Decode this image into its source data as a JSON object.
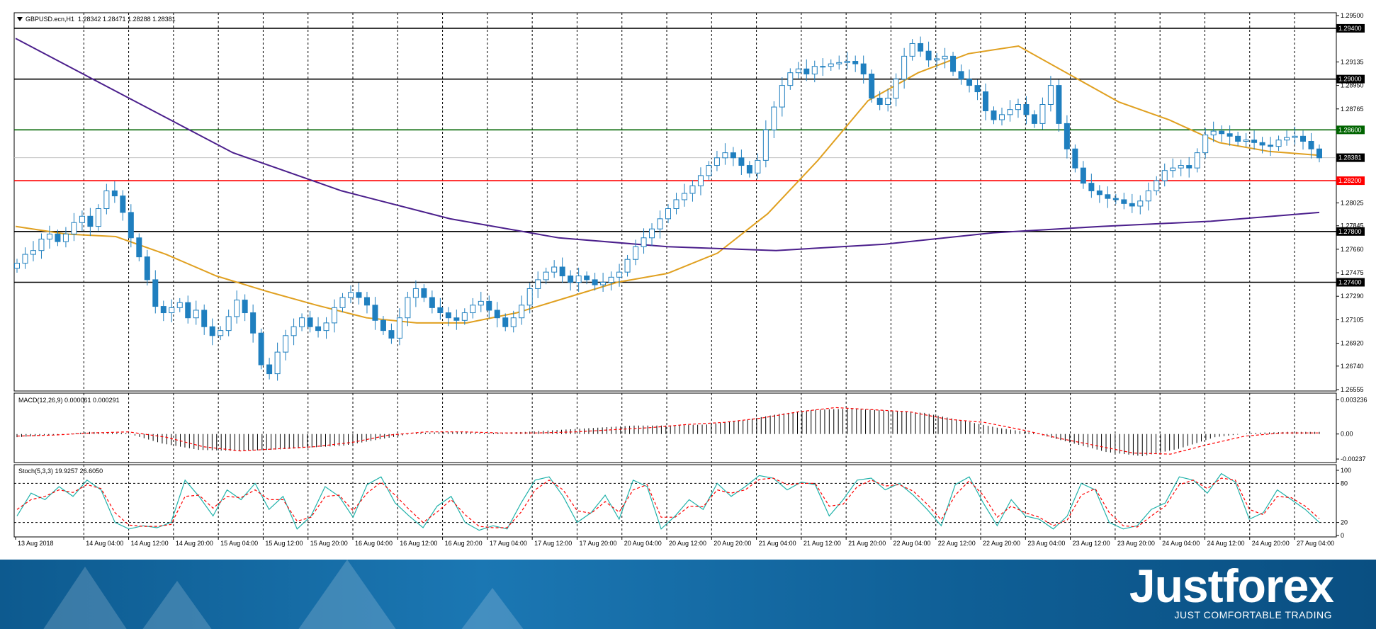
{
  "header": {
    "symbol": "GBPUSD.ecn,H1",
    "ohlc": "1.28342 1.28471 1.28288 1.28381"
  },
  "chart_data": [
    {
      "type": "line",
      "name": "price",
      "ylim": [
        1.26555,
        1.295
      ],
      "y_ticks": [
        "1.29500",
        "1.29135",
        "1.28950",
        "1.28765",
        "1.28025",
        "1.27845",
        "1.27660",
        "1.27475",
        "1.27290",
        "1.27105",
        "1.26920",
        "1.26740",
        "1.26555"
      ],
      "price_levels": [
        {
          "label": "1.29400",
          "value": 1.294,
          "color": "#000000"
        },
        {
          "label": "1.29000",
          "value": 1.29,
          "color": "#000000"
        },
        {
          "label": "1.28600",
          "value": 1.286,
          "color": "#006400"
        },
        {
          "label": "1.28200",
          "value": 1.282,
          "color": "#ff0000"
        },
        {
          "label": "1.27800",
          "value": 1.278,
          "color": "#000000"
        },
        {
          "label": "1.27400",
          "value": 1.274,
          "color": "#000000"
        }
      ],
      "current_price": {
        "label": "1.28381",
        "value": 1.28381
      },
      "x_labels": [
        "13 Aug 2018",
        "14 Aug 04:00",
        "14 Aug 12:00",
        "14 Aug 20:00",
        "15 Aug 04:00",
        "15 Aug 12:00",
        "15 Aug 20:00",
        "16 Aug 04:00",
        "16 Aug 12:00",
        "16 Aug 20:00",
        "17 Aug 04:00",
        "17 Aug 12:00",
        "17 Aug 20:00",
        "20 Aug 04:00",
        "20 Aug 12:00",
        "20 Aug 20:00",
        "21 Aug 04:00",
        "21 Aug 12:00",
        "21 Aug 20:00",
        "22 Aug 04:00",
        "22 Aug 12:00",
        "22 Aug 20:00",
        "23 Aug 04:00",
        "23 Aug 12:00",
        "23 Aug 20:00",
        "24 Aug 04:00",
        "24 Aug 12:00",
        "24 Aug 20:00",
        "27 Aug 04:00"
      ],
      "series": [
        {
          "name": "close",
          "values": [
            1.2755,
            1.2762,
            1.2765,
            1.2774,
            1.2778,
            1.2772,
            1.2778,
            1.2787,
            1.2792,
            1.2784,
            1.2798,
            1.2812,
            1.2808,
            1.2795,
            1.2775,
            1.276,
            1.2742,
            1.2721,
            1.2716,
            1.272,
            1.2724,
            1.2712,
            1.2718,
            1.2705,
            1.2698,
            1.2702,
            1.2713,
            1.2726,
            1.2716,
            1.27,
            1.2675,
            1.2668,
            1.2685,
            1.2698,
            1.2705,
            1.2712,
            1.2705,
            1.2702,
            1.2708,
            1.272,
            1.2728,
            1.2732,
            1.2728,
            1.2722,
            1.271,
            1.2702,
            1.2696,
            1.2712,
            1.2728,
            1.2735,
            1.2728,
            1.272,
            1.2716,
            1.2712,
            1.271,
            1.2716,
            1.2722,
            1.2725,
            1.2718,
            1.2712,
            1.2705,
            1.2712,
            1.2722,
            1.2735,
            1.2742,
            1.2748,
            1.2752,
            1.2745,
            1.274,
            1.2745,
            1.2742,
            1.2738,
            1.274,
            1.2744,
            1.2748,
            1.2758,
            1.2768,
            1.2775,
            1.2782,
            1.279,
            1.2798,
            1.2805,
            1.281,
            1.2816,
            1.2824,
            1.2832,
            1.2838,
            1.2842,
            1.2838,
            1.2832,
            1.2826,
            1.2836,
            1.286,
            1.2878,
            1.2895,
            1.2905,
            1.2908,
            1.2904,
            1.291,
            1.291,
            1.2912,
            1.2913,
            1.2914,
            1.2912,
            1.2904,
            1.2885,
            1.288,
            1.2885,
            1.29,
            1.2918,
            1.2928,
            1.2922,
            1.2915,
            1.2916,
            1.2918,
            1.2906,
            1.29,
            1.2895,
            1.289,
            1.2875,
            1.2868,
            1.2872,
            1.2876,
            1.288,
            1.2872,
            1.2865,
            1.288,
            1.2895,
            1.2865,
            1.2845,
            1.283,
            1.2818,
            1.2812,
            1.2809,
            1.2806,
            1.2805,
            1.2802,
            1.28,
            1.2804,
            1.2812,
            1.282,
            1.2828,
            1.283,
            1.2832,
            1.283,
            1.2842,
            1.2856,
            1.2859,
            1.2857,
            1.2855,
            1.2851,
            1.2852,
            1.285,
            1.2848,
            1.2847,
            1.2852,
            1.2854,
            1.2855,
            1.2851,
            1.2845,
            1.2838
          ]
        },
        {
          "name": "MA (orange)",
          "values": [
            1.2784,
            1.2778,
            1.2776,
            1.2762,
            1.2745,
            1.2733,
            1.2722,
            1.2712,
            1.2708,
            1.2708,
            1.2716,
            1.2728,
            1.274,
            1.2747,
            1.2763,
            1.2794,
            1.2836,
            1.2883,
            1.2905,
            1.292,
            1.2926,
            1.2904,
            1.2882,
            1.2868,
            1.285,
            1.2843,
            1.284
          ]
        },
        {
          "name": "MA (purple)",
          "values": [
            1.2932,
            1.2887,
            1.2842,
            1.2812,
            1.279,
            1.2775,
            1.2768,
            1.2765,
            1.277,
            1.2779,
            1.2784,
            1.2788,
            1.2795
          ]
        }
      ]
    },
    {
      "type": "bar",
      "name": "MACD",
      "label": "MACD(12,26,9) 0.000061 0.000291",
      "y_ticks": [
        "0.003236",
        "0.00",
        "-0.00237"
      ],
      "ylim": [
        -0.0025,
        0.0034
      ],
      "values": [
        -0.0003,
        -0.0001,
        0.0002,
        0.0001,
        -0.0009,
        -0.0015,
        -0.0016,
        -0.0015,
        -0.0013,
        -0.0011,
        -0.0005,
        0.0001,
        0.0002,
        0.0001,
        0.0002,
        0.0004,
        0.0006,
        0.0008,
        0.0008,
        0.0009,
        0.0013,
        0.0019,
        0.0023,
        0.0024,
        0.0022,
        0.002,
        0.0013,
        0.0006,
        0.0001,
        -0.0008,
        -0.0017,
        -0.0021,
        -0.0014,
        -0.0003,
        0.0001,
        0.0002
      ],
      "signal": [
        -0.0002,
        -0.0001,
        0.0001,
        0.0002,
        -0.0003,
        -0.0012,
        -0.0016,
        -0.0014,
        -0.0012,
        -0.0008,
        -0.0001,
        0.0002,
        0.0002,
        0.0001,
        0.0001,
        0.0002,
        0.0004,
        0.0006,
        0.0009,
        0.0011,
        0.0015,
        0.0021,
        0.0025,
        0.0023,
        0.0021,
        0.0014,
        0.0011,
        0.0004,
        -0.0004,
        -0.0011,
        -0.0018,
        -0.0019,
        -0.001,
        -0.0002,
        0.0001,
        0.0001
      ]
    },
    {
      "type": "line",
      "name": "Stochastic",
      "label": "Stoch(5,3,3) 19.9257 26.6050",
      "y_ticks": [
        "100",
        "80",
        "20",
        "0"
      ],
      "ylim": [
        0,
        100
      ],
      "levels": [
        80,
        20
      ],
      "series": [
        {
          "name": "%K",
          "values": [
            30,
            65,
            55,
            75,
            60,
            85,
            70,
            20,
            10,
            15,
            12,
            20,
            85,
            60,
            30,
            70,
            55,
            80,
            40,
            60,
            10,
            30,
            75,
            60,
            28,
            78,
            90,
            50,
            30,
            12,
            45,
            60,
            20,
            8,
            15,
            10,
            50,
            85,
            90,
            60,
            20,
            35,
            62,
            25,
            85,
            75,
            10,
            30,
            55,
            40,
            80,
            60,
            75,
            92,
            88,
            70,
            82,
            78,
            30,
            55,
            85,
            88,
            70,
            80,
            62,
            40,
            15,
            78,
            90,
            50,
            15,
            55,
            30,
            25,
            10,
            30,
            80,
            70,
            20,
            10,
            15,
            40,
            50,
            90,
            85,
            65,
            95,
            82,
            25,
            35,
            70,
            55,
            40,
            20
          ]
        },
        {
          "name": "%D",
          "values": [
            40,
            55,
            60,
            70,
            66,
            78,
            72,
            35,
            16,
            14,
            14,
            17,
            60,
            62,
            42,
            60,
            58,
            70,
            55,
            55,
            22,
            28,
            60,
            62,
            38,
            65,
            82,
            62,
            40,
            20,
            36,
            55,
            32,
            14,
            12,
            12,
            36,
            70,
            85,
            70,
            38,
            34,
            52,
            36,
            70,
            78,
            28,
            28,
            45,
            44,
            70,
            65,
            70,
            86,
            88,
            78,
            80,
            80,
            45,
            48,
            75,
            85,
            76,
            78,
            68,
            48,
            24,
            62,
            84,
            62,
            28,
            45,
            35,
            28,
            15,
            24,
            62,
            72,
            35,
            15,
            13,
            30,
            45,
            78,
            85,
            72,
            88,
            85,
            40,
            32,
            60,
            58,
            45,
            26
          ]
        }
      ]
    }
  ],
  "branding": {
    "logo": "Justforex",
    "tagline": "JUST COMFORTABLE TRADING"
  }
}
